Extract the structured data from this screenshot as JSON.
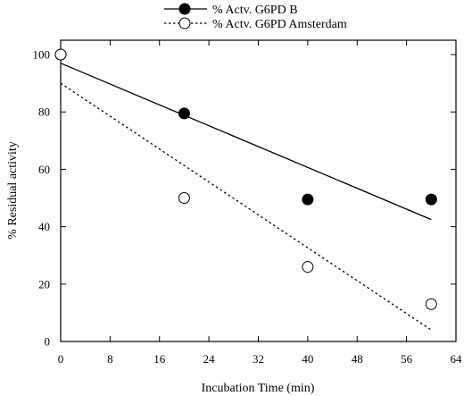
{
  "chart_data": {
    "type": "scatter",
    "xlabel": "Incubation Time (min)",
    "ylabel": "% Residual activity",
    "xlim": [
      0,
      64
    ],
    "ylim": [
      0,
      105
    ],
    "xticks": [
      0,
      8,
      16,
      24,
      32,
      40,
      48,
      56,
      64
    ],
    "yticks": [
      0,
      20,
      40,
      60,
      80,
      100
    ],
    "legend_position": "top-center",
    "series": [
      {
        "name": "% Actv. G6PD B",
        "marker": "filled-circle",
        "line_style": "solid",
        "x": [
          0,
          20,
          40,
          60
        ],
        "y": [
          100,
          79.5,
          49.5,
          49.5
        ],
        "fit_line": {
          "x": [
            0,
            60
          ],
          "y": [
            97,
            42.5
          ]
        }
      },
      {
        "name": "% Actv. G6PD Amsterdam",
        "marker": "open-circle",
        "line_style": "dashed",
        "x": [
          0,
          20,
          40,
          60
        ],
        "y": [
          100,
          50,
          26,
          13
        ],
        "fit_line": {
          "x": [
            0,
            60
          ],
          "y": [
            90,
            4
          ]
        }
      }
    ]
  }
}
